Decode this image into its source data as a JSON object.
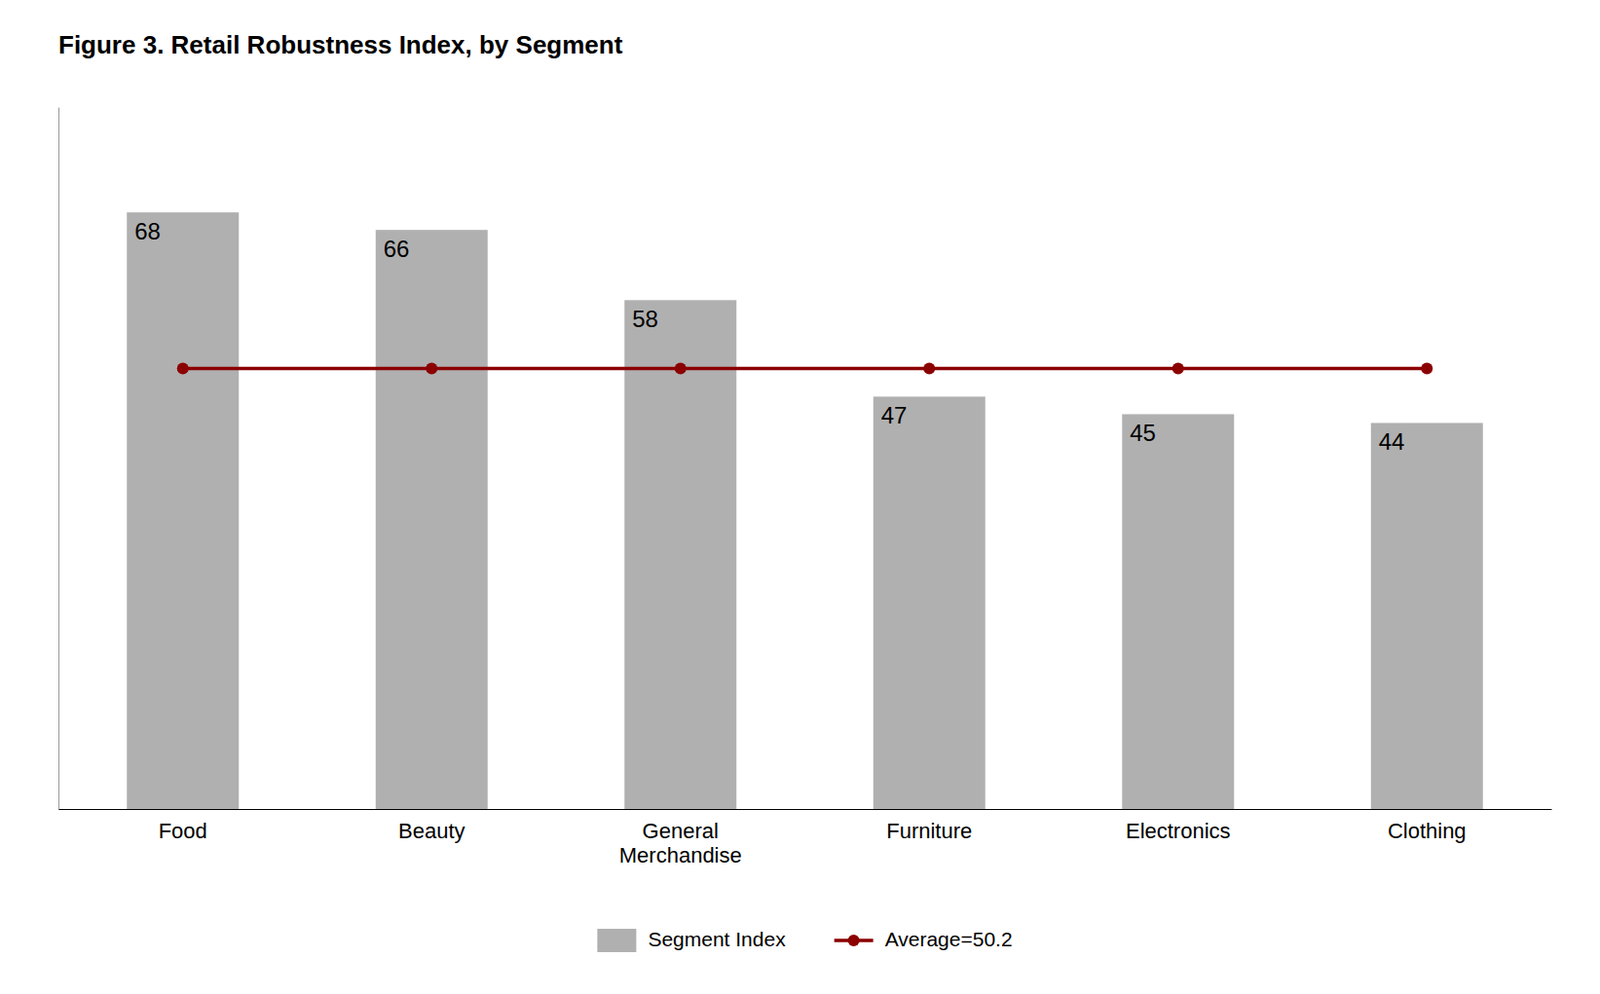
{
  "chart_data": {
    "type": "bar",
    "title": "Figure 3. Retail Robustness Index, by Segment",
    "categories": [
      "Food",
      "Beauty",
      "General\nMerchandise",
      "Furniture",
      "Electronics",
      "Clothing"
    ],
    "series": [
      {
        "name": "Segment Index",
        "type": "bar",
        "color": "#B0B0B0",
        "values": [
          68,
          66,
          58,
          47,
          45,
          44
        ]
      },
      {
        "name": "Average=50.2",
        "type": "line",
        "color": "#8B0000",
        "marker": "circle",
        "values": [
          50.2,
          50.2,
          50.2,
          50.2,
          50.2,
          50.2
        ]
      }
    ],
    "ylim": [
      0,
      80
    ],
    "grid": false,
    "legend": "bottom",
    "data_labels": true,
    "tick_labels": "x"
  }
}
